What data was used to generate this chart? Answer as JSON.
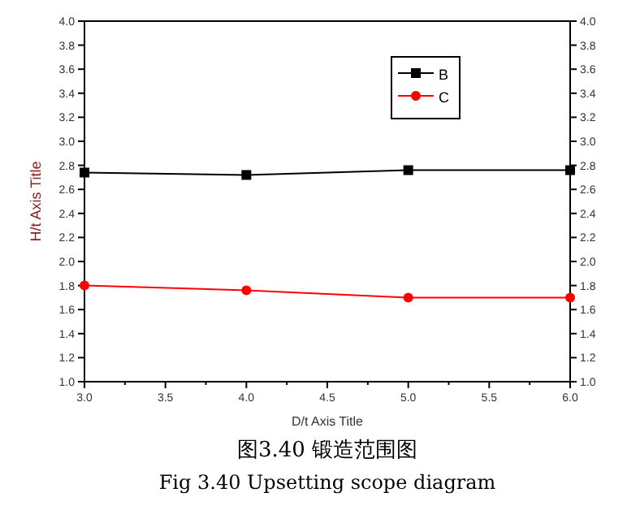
{
  "chart_data": {
    "type": "line",
    "xlabel": "D/t Axis Title",
    "ylabel": "H/t Axis Title",
    "x": [
      3,
      4,
      5,
      6
    ],
    "series": [
      {
        "name": "B",
        "color": "#000000",
        "marker": "square",
        "values": [
          2.74,
          2.72,
          2.76,
          2.76
        ]
      },
      {
        "name": "C",
        "color": "#ff0000",
        "marker": "circle",
        "values": [
          1.8,
          1.76,
          1.7,
          1.7
        ]
      }
    ],
    "xlim": [
      3,
      6
    ],
    "xticks": [
      {
        "value": 3,
        "label": "3.0"
      },
      3.5,
      {
        "value": 4,
        "label": "4.0"
      },
      4.5,
      {
        "value": 5,
        "label": "5.0"
      },
      5.5,
      {
        "value": 6,
        "label": "6.0"
      }
    ],
    "ylim": [
      1,
      4
    ],
    "yticks": [
      {
        "value": 1,
        "label": "1.0"
      },
      1.2,
      1.4,
      1.6,
      1.8,
      {
        "value": 2,
        "label": "2.0"
      },
      2.2,
      2.4,
      2.6,
      2.8,
      {
        "value": 3,
        "label": "3.0"
      },
      3.2,
      3.4,
      3.6,
      3.8,
      {
        "value": 4,
        "label": "4.0"
      }
    ],
    "y2lim": [
      1,
      4
    ],
    "y2ticks": [
      {
        "value": 1,
        "label": "1.0"
      },
      1.2,
      1.4,
      1.6,
      1.8,
      {
        "value": 2,
        "label": "2.0"
      },
      2.2,
      2.4,
      2.6,
      2.8,
      {
        "value": 3,
        "label": "3.0"
      },
      3.2,
      3.4,
      3.6,
      3.8,
      {
        "value": 4,
        "label": "4.0"
      }
    ],
    "legend": "top right",
    "grid": false,
    "line_style": "solid",
    "annotations": [
      "图3.40 锻造范围图",
      "Fig 3.40 Upsetting scope diagram"
    ]
  }
}
